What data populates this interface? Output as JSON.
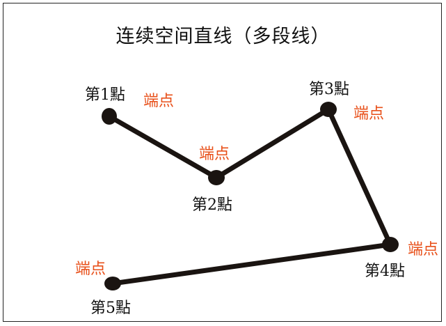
{
  "title": "连续空间直线（多段线）",
  "points": [
    {
      "label": "第1點",
      "end_label": "端点"
    },
    {
      "label": "第2點",
      "end_label": "端点"
    },
    {
      "label": "第3點",
      "end_label": "端点"
    },
    {
      "label": "第4點",
      "end_label": "端点"
    },
    {
      "label": "第5點",
      "end_label": "端点"
    }
  ],
  "colors": {
    "line": "#1a1411",
    "endpoint_label": "#e8501a",
    "text": "#111111"
  }
}
